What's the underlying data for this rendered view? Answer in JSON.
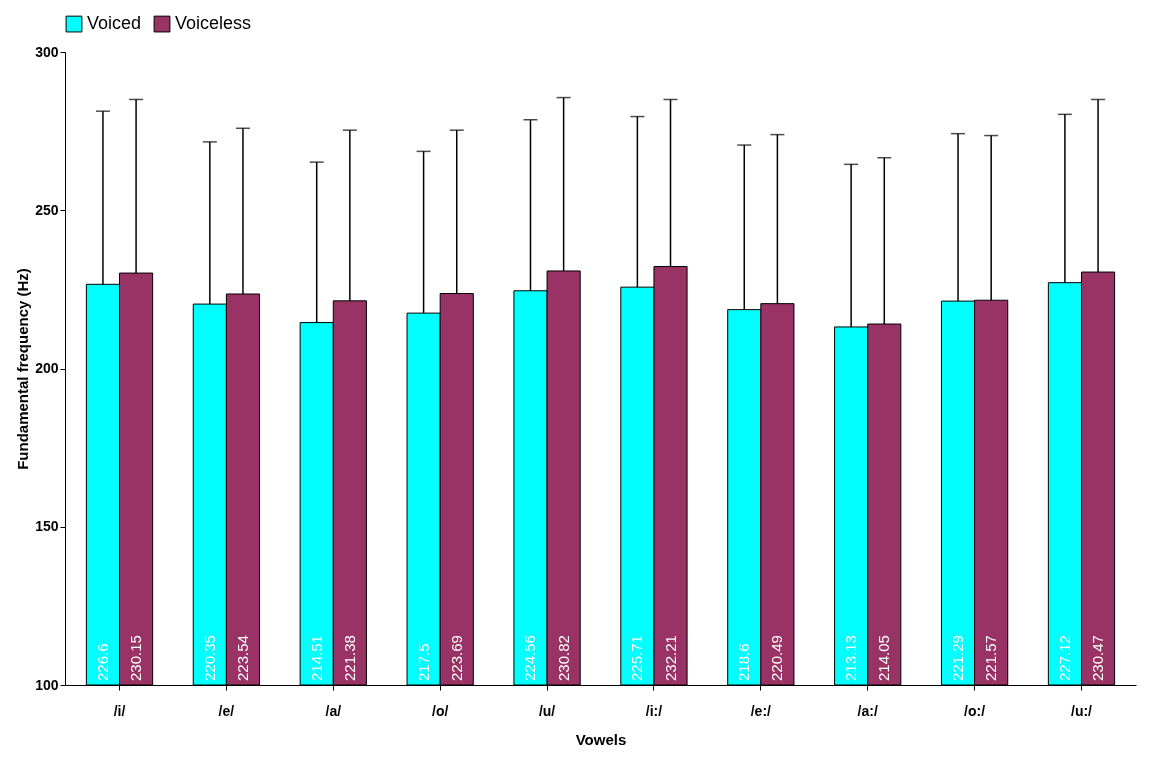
{
  "chart_data": {
    "type": "bar",
    "xlabel": "Vowels",
    "ylabel": "Fundamental frequency (Hz)",
    "categories": [
      "/i/",
      "/e/",
      "/a/",
      "/o/",
      "/u/",
      "/i:/",
      "/e:/",
      "/a:/",
      "/o:/",
      "/u:/"
    ],
    "series": [
      {
        "name": "Voiced",
        "color": "#00ffff",
        "values": [
          226.6,
          220.35,
          214.51,
          217.5,
          224.56,
          225.71,
          218.6,
          213.13,
          221.29,
          227.12
        ],
        "errors": [
          [
            226.6,
            281.3
          ],
          [
            220.35,
            271.6
          ],
          [
            214.51,
            265.2
          ],
          [
            217.5,
            268.6
          ],
          [
            224.56,
            278.6
          ],
          [
            225.71,
            279.6
          ],
          [
            218.6,
            270.6
          ],
          [
            213.13,
            264.5
          ],
          [
            221.29,
            274.2
          ],
          [
            227.12,
            280.3
          ]
        ]
      },
      {
        "name": "Voiceless",
        "color": "#993366",
        "values": [
          230.15,
          223.54,
          221.38,
          223.69,
          230.82,
          232.21,
          220.49,
          214.05,
          221.57,
          230.47
        ],
        "errors": [
          [
            230.15,
            285.0
          ],
          [
            223.54,
            275.9
          ],
          [
            221.38,
            275.3
          ],
          [
            223.69,
            275.3
          ],
          [
            230.82,
            285.6
          ],
          [
            232.21,
            285.0
          ],
          [
            220.49,
            273.9
          ],
          [
            214.05,
            266.6
          ],
          [
            221.57,
            273.6
          ],
          [
            230.47,
            285.0
          ]
        ]
      }
    ],
    "ylim": [
      100,
      300
    ],
    "yticks": [
      100,
      150,
      200,
      250,
      300
    ],
    "grid": false,
    "legend": "top",
    "data_labels": true
  }
}
